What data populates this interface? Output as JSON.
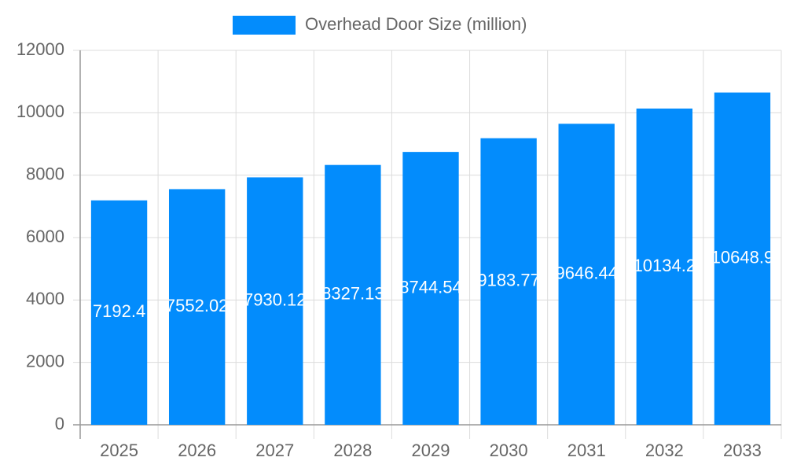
{
  "chart_data": {
    "type": "bar",
    "series": [
      {
        "name": "Overhead Door Size (million)",
        "color": "#038cfc",
        "values": [
          7192.4,
          7552.02,
          7930.12,
          8327.13,
          8744.54,
          9183.77,
          9646.44,
          10134.2,
          10648.9
        ]
      }
    ],
    "categories": [
      "2025",
      "2026",
      "2027",
      "2028",
      "2029",
      "2030",
      "2031",
      "2032",
      "2033"
    ],
    "ylim": [
      0,
      12000
    ],
    "yticks": [
      0,
      2000,
      4000,
      6000,
      8000,
      10000,
      12000
    ],
    "grid": true,
    "legend": "top"
  }
}
